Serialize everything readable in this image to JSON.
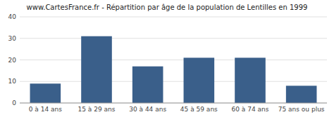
{
  "chart_data": {
    "type": "bar",
    "title": "www.CartesFrance.fr - Répartition par âge de la population de Lentilles en 1999",
    "categories": [
      "0 à 14 ans",
      "15 à 29 ans",
      "30 à 44 ans",
      "45 à 59 ans",
      "60 à 74 ans",
      "75 ans ou plus"
    ],
    "values": [
      9,
      31,
      17,
      21,
      21,
      8
    ],
    "color": "#3a5f8a",
    "ylim": [
      0,
      40
    ],
    "yticks": [
      0,
      10,
      20,
      30,
      40
    ],
    "grid": true
  }
}
